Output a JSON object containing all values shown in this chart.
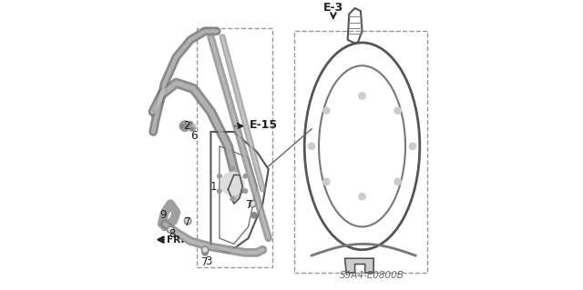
{
  "bg_color": "#ffffff",
  "line_color": "#555555",
  "dark_color": "#222222",
  "diagram_code": "S9A4-E0800B",
  "label_e3": "E-3",
  "label_e15": "E-15",
  "label_fr": "FR.",
  "figsize": [
    6.4,
    3.19
  ],
  "dpi": 100
}
